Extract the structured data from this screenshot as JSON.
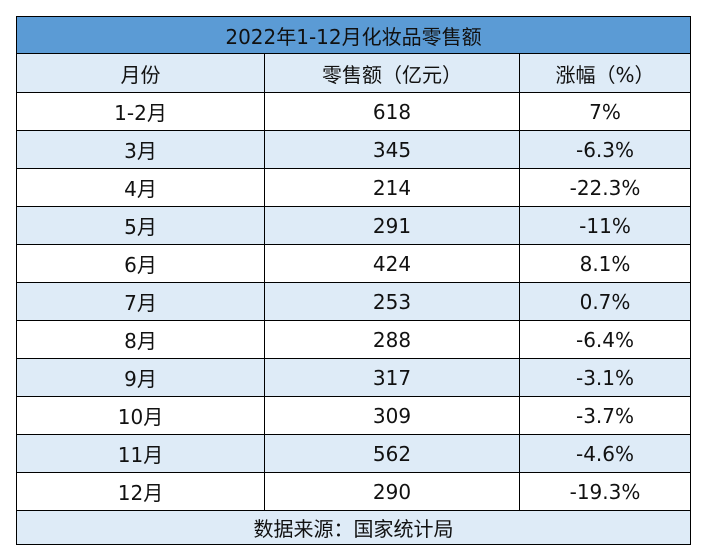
{
  "table": {
    "title": "2022年1-12月化妆品零售额",
    "columns": [
      "月份",
      "零售额（亿元）",
      "涨幅（%）"
    ],
    "rows": [
      [
        "1-2月",
        "618",
        "7%"
      ],
      [
        "3月",
        "345",
        "-6.3%"
      ],
      [
        "4月",
        "214",
        "-22.3%"
      ],
      [
        "5月",
        "291",
        "-11%"
      ],
      [
        "6月",
        "424",
        "8.1%"
      ],
      [
        "7月",
        "253",
        "0.7%"
      ],
      [
        "8月",
        "288",
        "-6.4%"
      ],
      [
        "9月",
        "317",
        "-3.1%"
      ],
      [
        "10月",
        "309",
        "-3.7%"
      ],
      [
        "11月",
        "562",
        "-4.6%"
      ],
      [
        "12月",
        "290",
        "-19.3%"
      ]
    ],
    "source": "数据来源：国家统计局"
  },
  "colors": {
    "title_bg": "#5b9bd5",
    "title_text": "#ffffff",
    "stripe": "#deebf7",
    "border": "#000000"
  }
}
